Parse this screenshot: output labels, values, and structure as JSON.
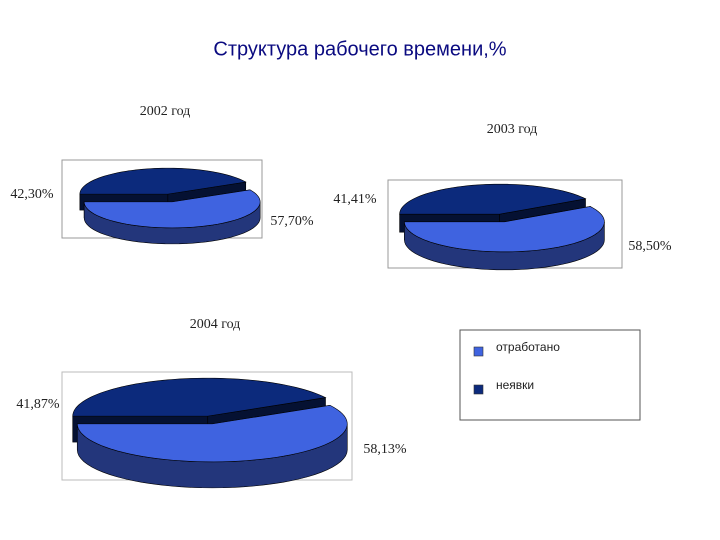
{
  "title": "Структура рабочего времени,%",
  "chart_data": [
    {
      "type": "pie",
      "title": "2002 год",
      "categories": [
        "отработано",
        "неявки"
      ],
      "values": [
        57.7,
        42.3
      ],
      "value_labels": [
        "57,70%",
        "42,30%"
      ],
      "colors": [
        "#3f63e0",
        "#0c2a7c"
      ]
    },
    {
      "type": "pie",
      "title": "2003 год",
      "categories": [
        "отработано",
        "неявки"
      ],
      "values": [
        58.5,
        41.41
      ],
      "value_labels": [
        "58,50%",
        "41,41%"
      ],
      "colors": [
        "#3f63e0",
        "#0c2a7c"
      ]
    },
    {
      "type": "pie",
      "title": "2004 год",
      "categories": [
        "отработано",
        "неявки"
      ],
      "values": [
        58.13,
        41.87
      ],
      "value_labels": [
        "58,13%",
        "41,87%"
      ],
      "colors": [
        "#3f63e0",
        "#0c2a7c"
      ]
    }
  ]
}
